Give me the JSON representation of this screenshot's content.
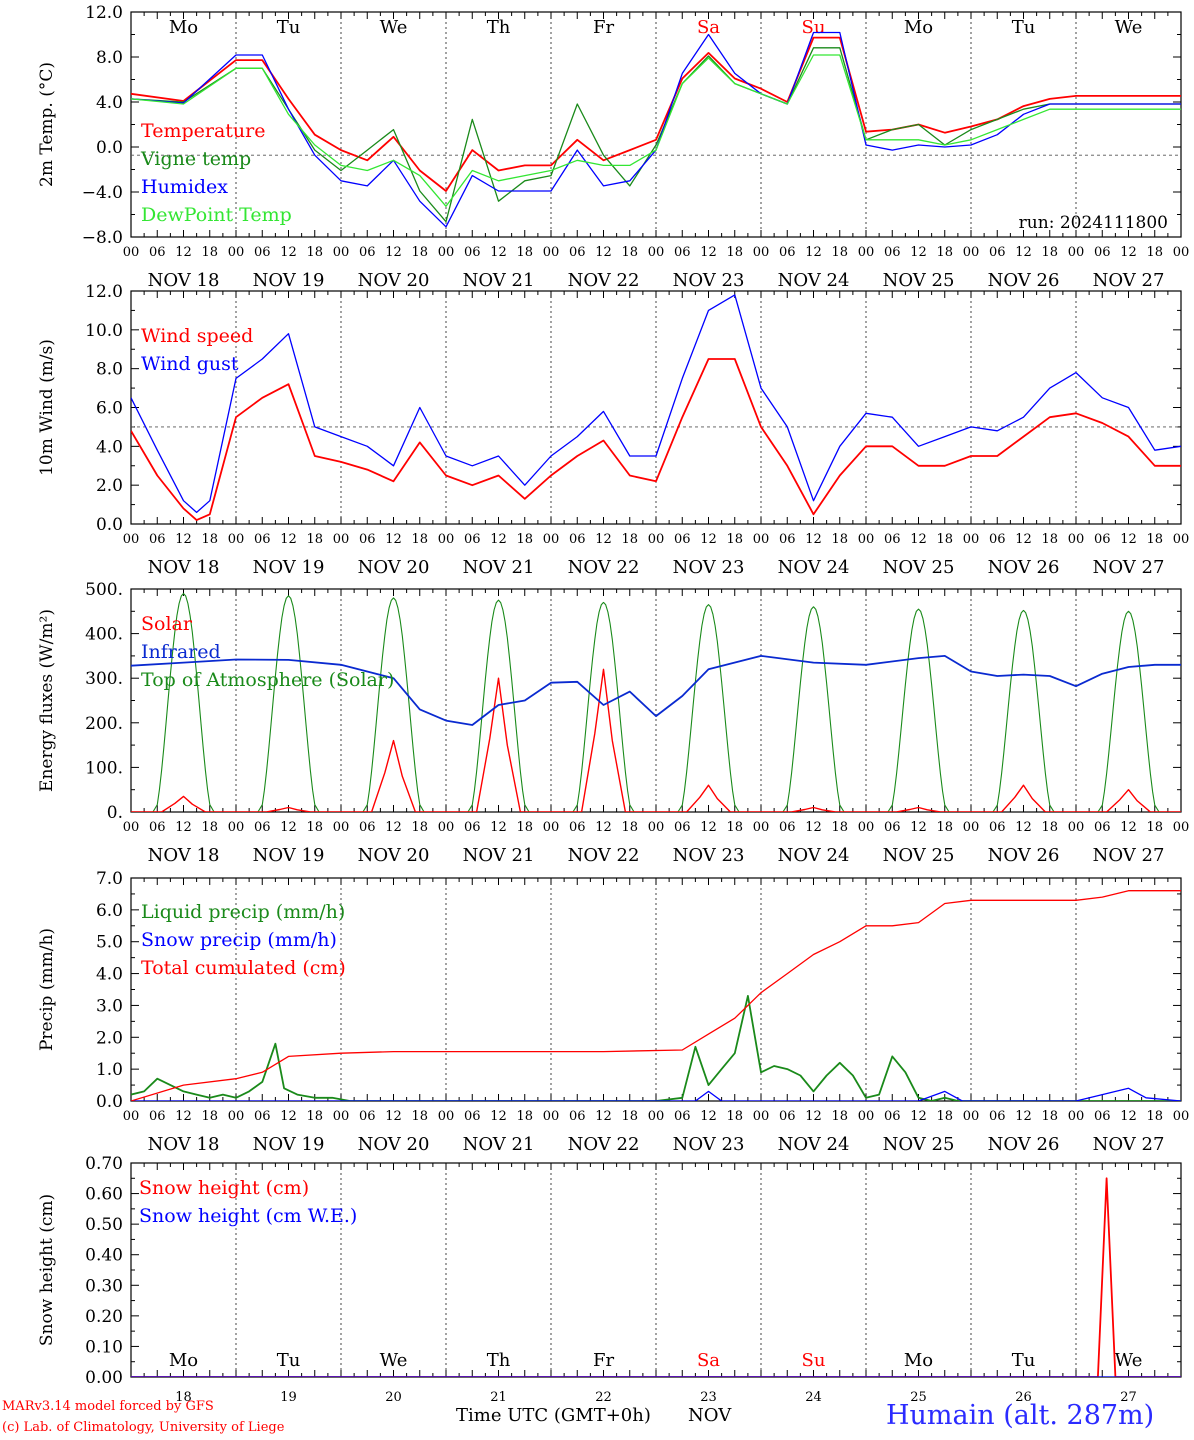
{
  "colors": {
    "red": "#ff0000",
    "green": "#1a8a1a",
    "blue": "#0000ff",
    "lightgreen": "#33e633",
    "darkblue": "#0a2ad0",
    "night_blue": "#2b2bff"
  },
  "days": [
    "Mo",
    "Tu",
    "We",
    "Th",
    "Fr",
    "Sa",
    "Su",
    "Mo",
    "Tu",
    "We"
  ],
  "weekend_days": [
    "Sa",
    "Su"
  ],
  "date_labels": [
    "NOV 18",
    "NOV 19",
    "NOV 20",
    "NOV 21",
    "NOV 22",
    "NOV 23",
    "NOV 24",
    "NOV 25",
    "NOV 26",
    "NOV 27"
  ],
  "hour_ticks": [
    "00",
    "06",
    "12",
    "18"
  ],
  "bottom_days": [
    "18",
    "19",
    "20",
    "21",
    "22",
    "23",
    "24",
    "25",
    "26",
    "27"
  ],
  "footer": {
    "model": "MARv3.14 model forced by GFS",
    "lab": "(c) Lab. of Climatology, University of Liege",
    "xlabel": "Time UTC (GMT+0h)",
    "month": "NOV",
    "station": "Humain (alt. 287m)"
  },
  "chart_data": [
    {
      "type": "line",
      "ylabel": "2m Temp. (°C)",
      "ylim": [
        -8,
        14
      ],
      "yticks": [
        "12.0",
        "8.0",
        "4.0",
        "0.0",
        "−4.0",
        "−8.0"
      ],
      "reference_line": 0,
      "annotation": "run: 2024111800",
      "x_unit": "hours since NOV 18 00 UTC",
      "x": [
        0,
        12,
        24,
        30,
        36,
        42,
        48,
        54,
        60,
        66,
        72,
        78,
        84,
        90,
        96,
        102,
        108,
        114,
        120,
        126,
        132,
        138,
        144,
        150,
        156,
        162,
        168,
        174,
        180,
        186,
        192,
        198,
        204,
        210,
        216,
        222,
        228,
        234,
        240
      ],
      "series": [
        {
          "name": "Temperature",
          "color": "#ff0000",
          "values": [
            6.0,
            5.3,
            9.3,
            9.3,
            5.5,
            2.0,
            0.5,
            -0.5,
            1.8,
            -1.5,
            -3.5,
            0.5,
            -1.5,
            -1.0,
            -1.0,
            1.5,
            -0.5,
            0.5,
            1.5,
            7.5,
            10.0,
            7.5,
            6.5,
            5.2,
            11.5,
            11.5,
            2.3,
            2.5,
            3.0,
            2.2,
            2.8,
            3.5,
            4.8,
            5.5,
            5.8,
            5.8,
            5.8,
            5.8,
            5.8
          ]
        },
        {
          "name": "Vigne temp",
          "color": "#1a8a1a",
          "values": [
            5.5,
            5.2,
            8.5,
            8.5,
            4.5,
            0.5,
            -1.5,
            0.5,
            2.5,
            -3.5,
            -6.5,
            3.5,
            -4.5,
            -2.5,
            -2.0,
            5.0,
            0.0,
            -3.0,
            1.0,
            7.0,
            9.7,
            7.0,
            6.0,
            5.0,
            10.5,
            10.5,
            1.5,
            2.5,
            3.0,
            1.0,
            2.5,
            3.5,
            4.5,
            5.0,
            5.0,
            5.0,
            5.0,
            5.0,
            5.0
          ]
        },
        {
          "name": "Humidex",
          "color": "#0000ff",
          "values": [
            5.5,
            5.1,
            9.8,
            9.8,
            4.5,
            0.0,
            -2.5,
            -3.0,
            -0.5,
            -4.5,
            -7.0,
            -2.0,
            -3.5,
            -3.5,
            -3.5,
            0.5,
            -3.0,
            -2.5,
            0.5,
            8.0,
            11.8,
            8.0,
            6.0,
            5.0,
            12.0,
            12.0,
            1.0,
            0.5,
            1.0,
            0.8,
            1.0,
            2.0,
            4.0,
            5.0,
            5.0,
            5.0,
            5.0,
            5.0,
            5.0
          ]
        },
        {
          "name": "DewPoint Temp",
          "color": "#33e633",
          "values": [
            5.5,
            5.0,
            8.5,
            8.5,
            4.0,
            1.0,
            -1.0,
            -1.5,
            -0.5,
            -2.0,
            -5.0,
            -1.5,
            -2.5,
            -2.0,
            -1.5,
            -0.5,
            -1.0,
            -1.0,
            0.5,
            7.0,
            9.5,
            7.0,
            6.0,
            5.0,
            9.8,
            9.8,
            1.5,
            1.5,
            1.5,
            1.0,
            1.5,
            2.5,
            3.5,
            4.5,
            4.5,
            4.5,
            4.5,
            4.5,
            4.5
          ]
        }
      ]
    },
    {
      "type": "line",
      "ylabel": "10m Wind (m/s)",
      "ylim": [
        0,
        12
      ],
      "yticks": [
        "12.0",
        "10.0",
        "8.0",
        "6.0",
        "4.0",
        "2.0",
        "0.0"
      ],
      "reference_line": 5,
      "x_unit": "hours since NOV 18 00 UTC",
      "x": [
        0,
        6,
        12,
        15,
        18,
        24,
        30,
        36,
        42,
        48,
        54,
        60,
        66,
        72,
        78,
        84,
        90,
        96,
        102,
        108,
        114,
        120,
        126,
        132,
        138,
        144,
        150,
        156,
        162,
        168,
        174,
        180,
        186,
        192,
        198,
        204,
        210,
        216,
        222,
        228,
        234,
        240
      ],
      "series": [
        {
          "name": "Wind speed",
          "color": "#ff0000",
          "values": [
            4.8,
            2.5,
            0.8,
            0.2,
            0.5,
            5.5,
            6.5,
            7.2,
            3.5,
            3.2,
            2.8,
            2.2,
            4.2,
            2.5,
            2.0,
            2.5,
            1.3,
            2.5,
            3.5,
            4.3,
            2.5,
            2.2,
            5.5,
            8.5,
            8.5,
            5.0,
            3.0,
            0.5,
            2.5,
            4.0,
            4.0,
            3.0,
            3.0,
            3.5,
            3.5,
            4.5,
            5.5,
            5.7,
            5.2,
            4.5,
            3.0,
            3.0
          ]
        },
        {
          "name": "Wind gust",
          "color": "#0000ff",
          "values": [
            6.5,
            3.8,
            1.2,
            0.6,
            1.2,
            7.5,
            8.5,
            9.8,
            5.0,
            4.5,
            4.0,
            3.0,
            6.0,
            3.5,
            3.0,
            3.5,
            2.0,
            3.5,
            4.5,
            5.8,
            3.5,
            3.5,
            7.5,
            11.0,
            11.8,
            7.0,
            5.0,
            1.2,
            4.0,
            5.7,
            5.5,
            4.0,
            4.5,
            5.0,
            4.8,
            5.5,
            7.0,
            7.8,
            6.5,
            6.0,
            3.8,
            4.0
          ]
        }
      ]
    },
    {
      "type": "line",
      "ylabel": "Energy fluxes (W/m²)",
      "ylim": [
        0,
        500
      ],
      "yticks": [
        "500.",
        "400.",
        "300.",
        "200.",
        "100.",
        "0."
      ],
      "x_unit": "hours since NOV 18 00 UTC",
      "solar_peaks": [
        {
          "x": 12,
          "value": 35
        },
        {
          "x": 36,
          "value": 10
        },
        {
          "x": 60,
          "value": 160
        },
        {
          "x": 84,
          "value": 300
        },
        {
          "x": 108,
          "value": 320
        },
        {
          "x": 132,
          "value": 60
        },
        {
          "x": 156,
          "value": 10
        },
        {
          "x": 180,
          "value": 10
        },
        {
          "x": 204,
          "value": 60
        },
        {
          "x": 228,
          "value": 50
        }
      ],
      "toa_peaks": [
        490,
        485,
        480,
        475,
        470,
        465,
        460,
        455,
        452,
        450
      ],
      "series": [
        {
          "name": "Solar",
          "color": "#ff0000"
        },
        {
          "name": "Infrared",
          "color": "#0a2ad0",
          "x": [
            0,
            12,
            24,
            36,
            48,
            60,
            66,
            72,
            78,
            84,
            90,
            96,
            102,
            108,
            114,
            120,
            126,
            132,
            144,
            156,
            168,
            180,
            186,
            192,
            198,
            204,
            210,
            216,
            222,
            228,
            234,
            240
          ],
          "values": [
            328,
            335,
            342,
            341,
            330,
            300,
            230,
            205,
            195,
            240,
            250,
            290,
            292,
            240,
            270,
            215,
            260,
            320,
            350,
            335,
            330,
            345,
            350,
            315,
            305,
            308,
            305,
            282,
            310,
            325,
            330,
            330
          ]
        },
        {
          "name": "Top of Atmosphere (Solar)",
          "color": "#1a8a1a"
        }
      ]
    },
    {
      "type": "line",
      "ylabel": "Precip (mm/h)",
      "ylim": [
        0,
        7
      ],
      "yticks": [
        "7.0",
        "6.0",
        "5.0",
        "4.0",
        "3.0",
        "2.0",
        "1.0",
        "0.0"
      ],
      "x_unit": "hours since NOV 18 00 UTC",
      "series": [
        {
          "name": "Liquid precip (mm/h)",
          "color": "#1a8a1a",
          "x": [
            0,
            3,
            6,
            9,
            12,
            15,
            18,
            21,
            24,
            27,
            30,
            33,
            35,
            38,
            42,
            46,
            50,
            54,
            100,
            110,
            120,
            126,
            129,
            132,
            135,
            138,
            141,
            144,
            147,
            150,
            153,
            156,
            159,
            162,
            165,
            168,
            171,
            174,
            177,
            180,
            183,
            186,
            189,
            192,
            210,
            240
          ],
          "values": [
            0.2,
            0.3,
            0.7,
            0.5,
            0.3,
            0.2,
            0.1,
            0.2,
            0.1,
            0.3,
            0.6,
            1.8,
            0.4,
            0.2,
            0.1,
            0.1,
            0.0,
            0.0,
            0.0,
            0.0,
            0.0,
            0.1,
            1.7,
            0.5,
            1.0,
            1.5,
            3.3,
            0.9,
            1.1,
            1.0,
            0.8,
            0.3,
            0.8,
            1.2,
            0.8,
            0.1,
            0.2,
            1.4,
            0.9,
            0.1,
            0.0,
            0.1,
            0.0,
            0.0,
            0.0,
            0.0
          ]
        },
        {
          "name": "Snow precip (mm/h)",
          "color": "#0000ff",
          "x": [
            0,
            120,
            129,
            132,
            135,
            180,
            186,
            190,
            200,
            216,
            222,
            228,
            232,
            240
          ],
          "values": [
            0.0,
            0.0,
            0.0,
            0.3,
            0.0,
            0.0,
            0.3,
            0.0,
            0.0,
            0.0,
            0.2,
            0.4,
            0.1,
            0.0
          ]
        },
        {
          "name": "Total cumulated (cm)",
          "color": "#ff0000",
          "x": [
            0,
            12,
            24,
            30,
            36,
            48,
            60,
            84,
            108,
            126,
            132,
            138,
            144,
            150,
            156,
            162,
            168,
            174,
            180,
            186,
            192,
            210,
            216,
            222,
            228,
            240
          ],
          "values": [
            0.0,
            0.5,
            0.7,
            0.9,
            1.4,
            1.5,
            1.55,
            1.55,
            1.55,
            1.6,
            2.1,
            2.6,
            3.4,
            4.0,
            4.6,
            5.0,
            5.5,
            5.5,
            5.6,
            6.2,
            6.3,
            6.3,
            6.3,
            6.4,
            6.6,
            6.6
          ]
        }
      ]
    },
    {
      "type": "line",
      "ylabel": "Snow height (cm)",
      "ylim": [
        0,
        0.7
      ],
      "yticks": [
        "0.70",
        "0.60",
        "0.50",
        "0.40",
        "0.30",
        "0.20",
        "0.10",
        "0.00"
      ],
      "x_unit": "hours since NOV 18 00 UTC",
      "series": [
        {
          "name": "Snow height (cm)",
          "color": "#ff0000",
          "x": [
            0,
            221,
            223,
            225,
            240
          ],
          "values": [
            0,
            0,
            0.65,
            0,
            0
          ]
        },
        {
          "name": "Snow height (cm W.E.)",
          "color": "#0000ff",
          "x": [
            0,
            240
          ],
          "values": [
            0,
            0
          ]
        }
      ]
    }
  ]
}
